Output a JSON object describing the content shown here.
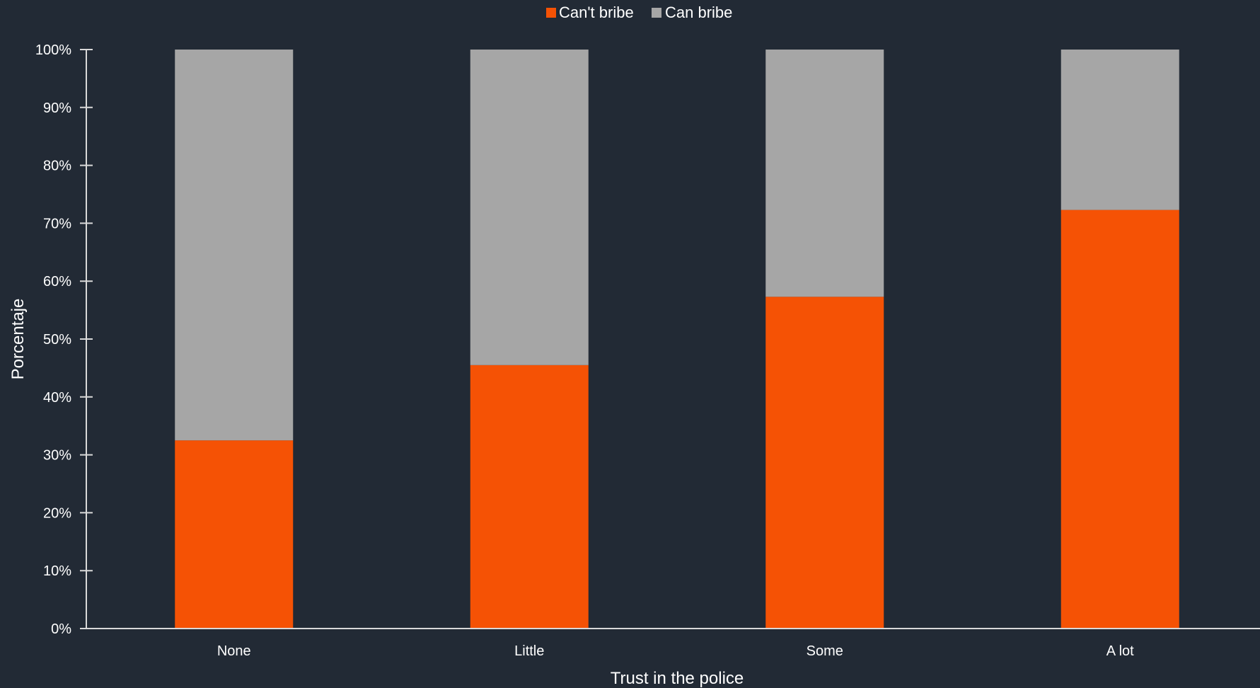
{
  "chart_data": {
    "type": "bar",
    "stacked": true,
    "percent_stacked": true,
    "categories": [
      "None",
      "Little",
      "Some",
      "A lot"
    ],
    "series": [
      {
        "name": "Can't bribe",
        "color": "#f55205",
        "values": [
          32.5,
          45.5,
          57.3,
          72.3
        ]
      },
      {
        "name": "Can bribe",
        "color": "#a6a6a6",
        "values": [
          67.5,
          54.5,
          42.7,
          27.7
        ]
      }
    ],
    "xlabel": "Trust in the police",
    "ylabel": "Porcentaje",
    "ylim": [
      0,
      100
    ],
    "yticks": [
      "0%",
      "10%",
      "20%",
      "30%",
      "40%",
      "50%",
      "60%",
      "70%",
      "80%",
      "90%",
      "100%"
    ],
    "legend_position": "top-center",
    "grid": false,
    "background": "#222a35",
    "axis_color": "#d9d9d9"
  }
}
